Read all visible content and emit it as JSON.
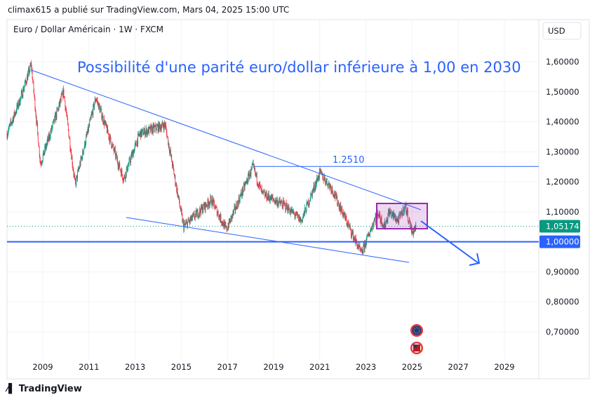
{
  "header": "climax615 a publié sur TradingView.com, Mars 04, 2025 15:00 UTC",
  "symbol": "Euro / Dollar Américain · 1W · FXCM",
  "currency": "USD",
  "annotation_title": "Possibilité d'une parité euro/dollar inférieure à 1,00 en 2030",
  "level_label": "1.2510",
  "logo_text": "TradingView",
  "chart_data": {
    "type": "candlestick",
    "title": "Possibilité d'une parité euro/dollar inférieure à 1,00 en 2030",
    "ylim": [
      0.62,
      1.7
    ],
    "xlim": [
      2007.45,
      2030.5
    ],
    "x_ticks": [
      "2009",
      "2011",
      "2013",
      "2015",
      "2017",
      "2019",
      "2021",
      "2023",
      "2025",
      "2027",
      "2029"
    ],
    "y_ticks": [
      "1,60000",
      "1,50000",
      "1,40000",
      "1,30000",
      "1,20000",
      "1,10000",
      "1,00000",
      "0,90000",
      "0,80000",
      "0,70000"
    ],
    "price_path": [
      [
        2007.45,
        1.36
      ],
      [
        2008.0,
        1.47
      ],
      [
        2008.5,
        1.59
      ],
      [
        2008.9,
        1.26
      ],
      [
        2009.9,
        1.5
      ],
      [
        2010.4,
        1.19
      ],
      [
        2011.3,
        1.48
      ],
      [
        2012.5,
        1.21
      ],
      [
        2013.2,
        1.36
      ],
      [
        2014.3,
        1.39
      ],
      [
        2015.1,
        1.05
      ],
      [
        2016.3,
        1.14
      ],
      [
        2016.95,
        1.04
      ],
      [
        2018.1,
        1.25
      ],
      [
        2018.5,
        1.16
      ],
      [
        2019.5,
        1.12
      ],
      [
        2020.2,
        1.07
      ],
      [
        2021.0,
        1.23
      ],
      [
        2021.5,
        1.18
      ],
      [
        2022.8,
        0.96
      ],
      [
        2023.5,
        1.1
      ],
      [
        2023.8,
        1.05
      ],
      [
        2024.0,
        1.1
      ],
      [
        2024.4,
        1.07
      ],
      [
        2024.7,
        1.12
      ],
      [
        2025.0,
        1.03
      ],
      [
        2025.17,
        1.0517
      ]
    ],
    "last_price": "1,05174",
    "horizontal_levels": [
      {
        "value": 1.251,
        "label": "1.2510"
      },
      {
        "value": 1.0,
        "label": "1,00000"
      }
    ],
    "up_color": "#089981",
    "down_color": "#f23645",
    "line_color": "#2962ff",
    "box_color": "#9c27b0"
  }
}
